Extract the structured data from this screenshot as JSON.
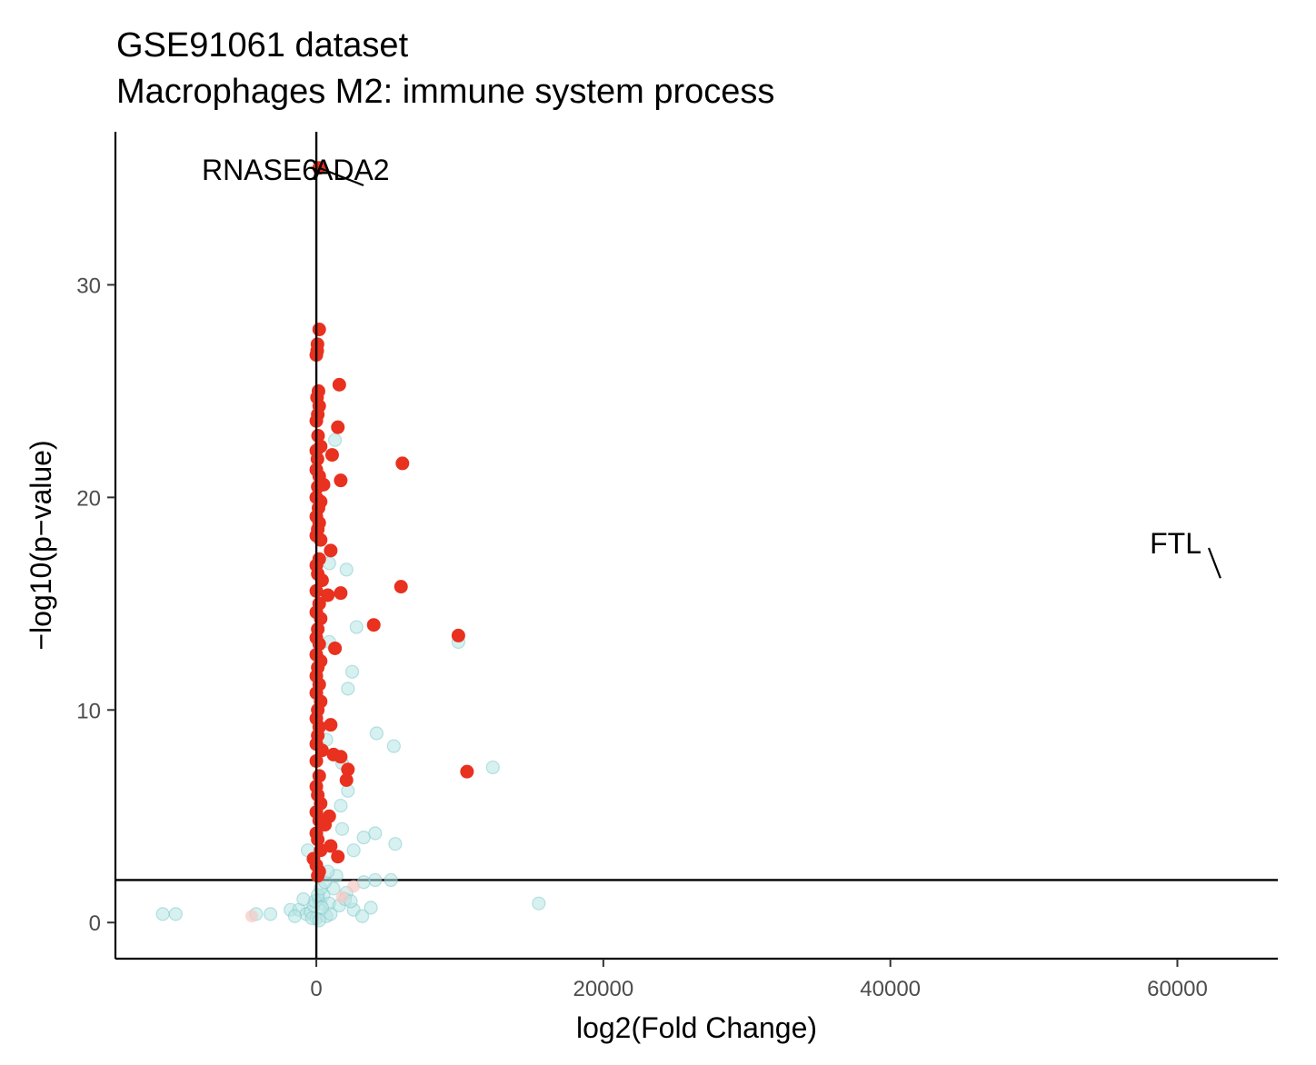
{
  "chart_data": {
    "type": "scatter",
    "title": "GSE91061 dataset",
    "subtitle": "Macrophages M2: immune system process",
    "xlabel": "log2(Fold Change)",
    "ylabel": "−log10(p−value)",
    "xlim": [
      -14000,
      67000
    ],
    "ylim": [
      -1.7,
      37.2
    ],
    "x_ticks": [
      0,
      20000,
      40000,
      60000
    ],
    "x_tick_labels": [
      "0",
      "20000",
      "40000",
      "60000"
    ],
    "y_ticks": [
      0,
      10,
      20,
      30
    ],
    "y_tick_labels": [
      "0",
      "10",
      "20",
      "30"
    ],
    "grid": false,
    "reference_lines": {
      "vertical_x": 0,
      "horizontal_y": 2
    },
    "colors": {
      "significant": "#e8311f",
      "nonsignificant": "#b7e3e4",
      "nonsignificant_edge": "#7cc8c9",
      "faded_red": "#f6c9c4"
    },
    "labels": [
      {
        "text": "RNASE6",
        "x": 200,
        "y": 27.9
      },
      {
        "text": "ADA2",
        "x": 200,
        "y": 35.5
      },
      {
        "text": "FTL",
        "x": 63000,
        "y": 16.2
      }
    ],
    "series": [
      {
        "values": [
          [
            200,
            35.5
          ],
          [
            200,
            27.9
          ],
          [
            80,
            27.2
          ],
          [
            60,
            26.9
          ],
          [
            0,
            26.7
          ],
          [
            1600,
            25.3
          ],
          [
            150,
            25.0
          ],
          [
            50,
            24.7
          ],
          [
            200,
            24.3
          ],
          [
            100,
            23.9
          ],
          [
            0,
            23.6
          ],
          [
            1500,
            23.3
          ],
          [
            120,
            22.9
          ],
          [
            300,
            22.4
          ],
          [
            0,
            22.2
          ],
          [
            1100,
            22.0
          ],
          [
            80,
            21.8
          ],
          [
            6000,
            21.6
          ],
          [
            0,
            21.3
          ],
          [
            200,
            21.0
          ],
          [
            1700,
            20.8
          ],
          [
            100,
            20.5
          ],
          [
            500,
            20.6
          ],
          [
            0,
            20.0
          ],
          [
            300,
            19.8
          ],
          [
            150,
            19.5
          ],
          [
            0,
            19.1
          ],
          [
            200,
            18.8
          ],
          [
            100,
            18.5
          ],
          [
            0,
            18.2
          ],
          [
            300,
            18.0
          ],
          [
            1000,
            17.5
          ],
          [
            200,
            17.1
          ],
          [
            0,
            16.8
          ],
          [
            100,
            16.4
          ],
          [
            400,
            16.1
          ],
          [
            5900,
            15.8
          ],
          [
            0,
            15.6
          ],
          [
            1700,
            15.5
          ],
          [
            800,
            15.4
          ],
          [
            200,
            15.0
          ],
          [
            0,
            14.6
          ],
          [
            300,
            14.3
          ],
          [
            4000,
            14.0
          ],
          [
            100,
            13.8
          ],
          [
            9900,
            13.5
          ],
          [
            0,
            13.4
          ],
          [
            200,
            13.1
          ],
          [
            1300,
            12.9
          ],
          [
            0,
            12.6
          ],
          [
            300,
            12.3
          ],
          [
            100,
            12.0
          ],
          [
            0,
            11.6
          ],
          [
            200,
            11.2
          ],
          [
            0,
            10.8
          ],
          [
            300,
            10.4
          ],
          [
            100,
            10.0
          ],
          [
            0,
            9.6
          ],
          [
            200,
            9.2
          ],
          [
            1000,
            9.3
          ],
          [
            100,
            8.8
          ],
          [
            0,
            8.4
          ],
          [
            400,
            8.1
          ],
          [
            1200,
            7.9
          ],
          [
            1700,
            7.8
          ],
          [
            0,
            7.6
          ],
          [
            2200,
            7.2
          ],
          [
            10500,
            7.1
          ],
          [
            200,
            6.9
          ],
          [
            2100,
            6.7
          ],
          [
            0,
            6.4
          ],
          [
            100,
            6.0
          ],
          [
            300,
            5.6
          ],
          [
            0,
            5.2
          ],
          [
            900,
            5.0
          ],
          [
            200,
            4.8
          ],
          [
            600,
            4.6
          ],
          [
            0,
            4.2
          ],
          [
            100,
            3.9
          ],
          [
            1000,
            3.6
          ],
          [
            300,
            3.4
          ],
          [
            1500,
            3.1
          ],
          [
            -200,
            3.0
          ],
          [
            0,
            2.7
          ],
          [
            200,
            2.4
          ],
          [
            100,
            2.2
          ]
        ]
      },
      {
        "values": [
          [
            9900,
            13.2
          ],
          [
            12300,
            7.3
          ],
          [
            15500,
            0.9
          ],
          [
            5500,
            3.7
          ],
          [
            4100,
            4.2
          ],
          [
            3300,
            4.0
          ],
          [
            2800,
            13.9
          ],
          [
            2500,
            11.8
          ],
          [
            2200,
            11.0
          ],
          [
            4200,
            8.9
          ],
          [
            5400,
            8.3
          ],
          [
            3300,
            1.9
          ],
          [
            4100,
            2.0
          ],
          [
            5200,
            2.0
          ],
          [
            1800,
            4.4
          ],
          [
            2600,
            3.4
          ],
          [
            3800,
            0.7
          ],
          [
            -10700,
            0.4
          ],
          [
            -9800,
            0.4
          ],
          [
            -4200,
            0.4
          ],
          [
            -3200,
            0.4
          ],
          [
            -1800,
            0.6
          ],
          [
            -1200,
            0.6
          ],
          [
            -700,
            0.4
          ],
          [
            -400,
            0.5
          ],
          [
            -200,
            0.8
          ],
          [
            0,
            0.2
          ],
          [
            150,
            1.1
          ],
          [
            300,
            0.9
          ],
          [
            500,
            1.3
          ],
          [
            700,
            0.3
          ],
          [
            900,
            0.9
          ],
          [
            1200,
            1.6
          ],
          [
            1600,
            0.8
          ],
          [
            2100,
            1.4
          ],
          [
            2600,
            0.6
          ],
          [
            3200,
            0.3
          ],
          [
            -600,
            3.4
          ],
          [
            1300,
            22.7
          ],
          [
            900,
            16.9
          ],
          [
            2100,
            16.6
          ],
          [
            900,
            13.2
          ],
          [
            700,
            8.6
          ],
          [
            1700,
            5.5
          ],
          [
            2200,
            6.2
          ],
          [
            1800,
            7.5
          ],
          [
            -100,
            1.0
          ],
          [
            100,
            1.3
          ],
          [
            300,
            1.6
          ],
          [
            -300,
            0.2
          ],
          [
            1000,
            0.4
          ],
          [
            1400,
            2.2
          ],
          [
            600,
            1.9
          ],
          [
            -900,
            1.1
          ],
          [
            200,
            0.1
          ],
          [
            2000,
            1.1
          ],
          [
            2400,
            1.0
          ],
          [
            800,
            2.4
          ],
          [
            -1500,
            0.3
          ],
          [
            400,
            0.7
          ]
        ]
      },
      {
        "values": [
          [
            -4500,
            0.3
          ],
          [
            1800,
            1.2
          ],
          [
            2600,
            1.7
          ]
        ]
      }
    ]
  }
}
